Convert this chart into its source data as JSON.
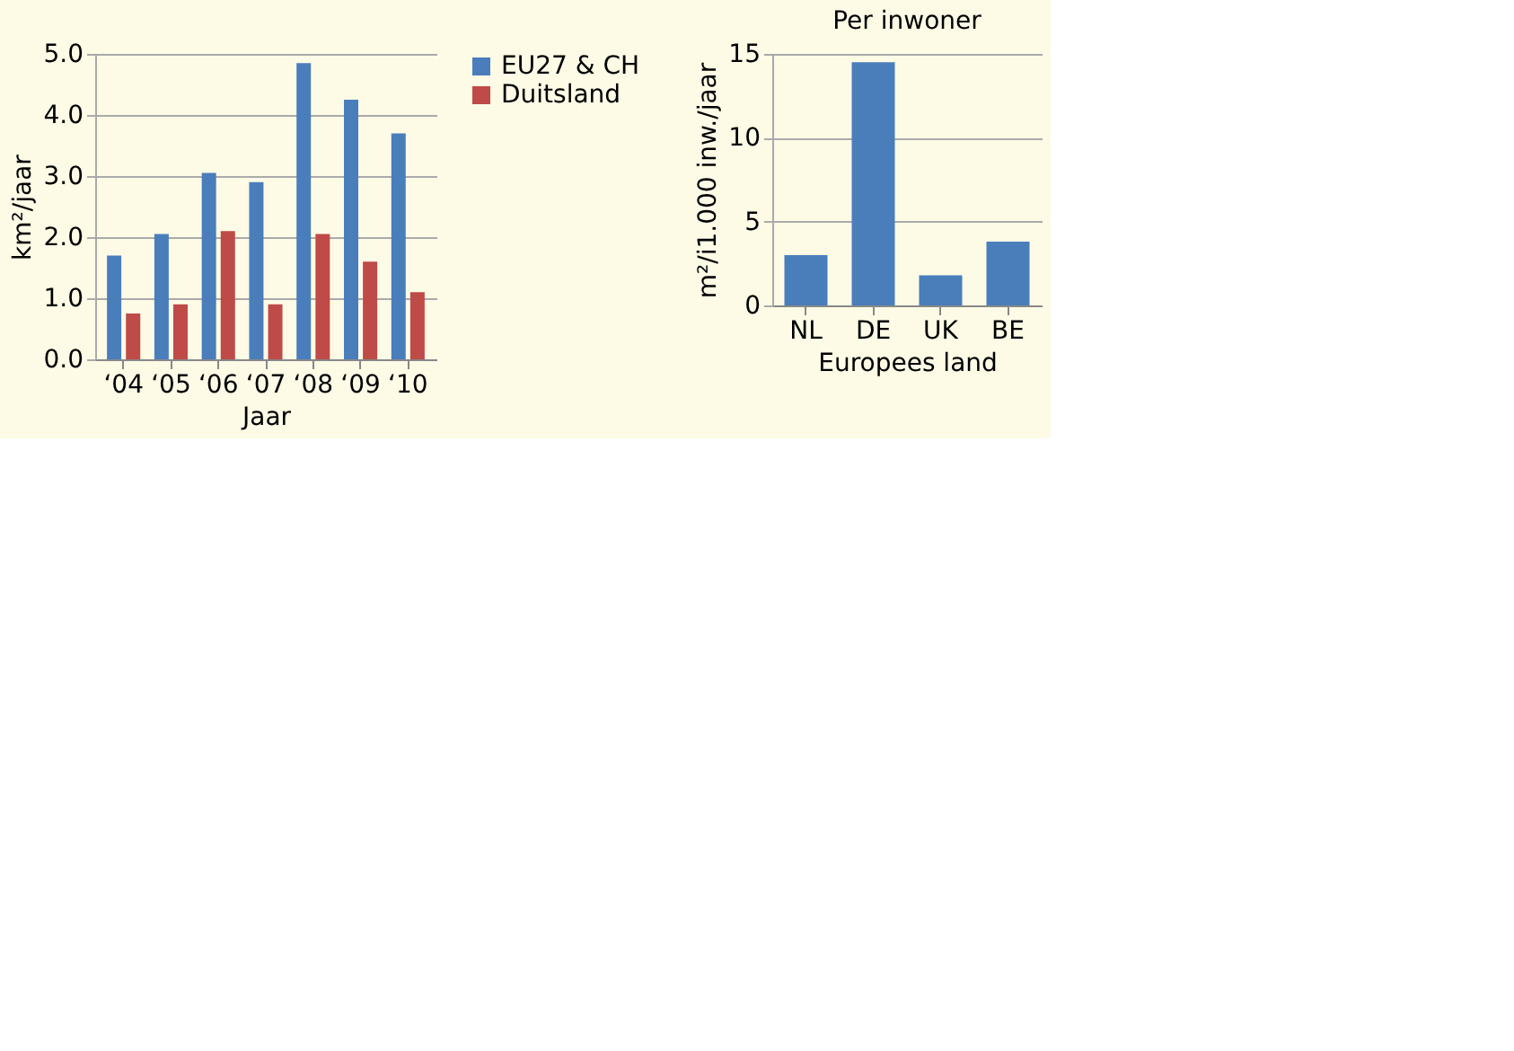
{
  "chart_data": [
    {
      "type": "bar",
      "categories": [
        "‘04",
        "‘05",
        "‘06",
        "‘07",
        "‘08",
        "‘09",
        "‘10"
      ],
      "xlabel": "Jaar",
      "ylabel": "km²/jaar",
      "ylim": [
        0,
        5
      ],
      "yticks": [
        {
          "value": 0,
          "label": "0.0"
        },
        {
          "value": 1,
          "label": "1.0"
        },
        {
          "value": 2,
          "label": "2.0"
        },
        {
          "value": 3,
          "label": "3.0"
        },
        {
          "value": 4,
          "label": "4.0"
        },
        {
          "value": 5,
          "label": "5.0"
        }
      ],
      "grid": "y",
      "legend": "right",
      "series": [
        {
          "name": "EU27 & CH",
          "color": "#4a7ebb",
          "values": [
            1.7,
            2.05,
            3.05,
            2.9,
            4.85,
            4.25,
            3.7
          ]
        },
        {
          "name": "Duitsland",
          "color": "#be4b48",
          "values": [
            0.75,
            0.9,
            2.1,
            0.9,
            2.05,
            1.6,
            1.1
          ]
        }
      ]
    },
    {
      "type": "bar",
      "title": "Per inwoner",
      "categories": [
        "NL",
        "DE",
        "UK",
        "BE"
      ],
      "xlabel": "Europees land",
      "ylabel": "m²/i1.000 inw./jaar",
      "ylim": [
        0,
        15
      ],
      "yticks": [
        0,
        5,
        10,
        15
      ],
      "grid": "y",
      "series": [
        {
          "color": "#4a7ebb",
          "values": [
            3.0,
            14.5,
            1.8,
            3.8
          ]
        }
      ]
    }
  ]
}
